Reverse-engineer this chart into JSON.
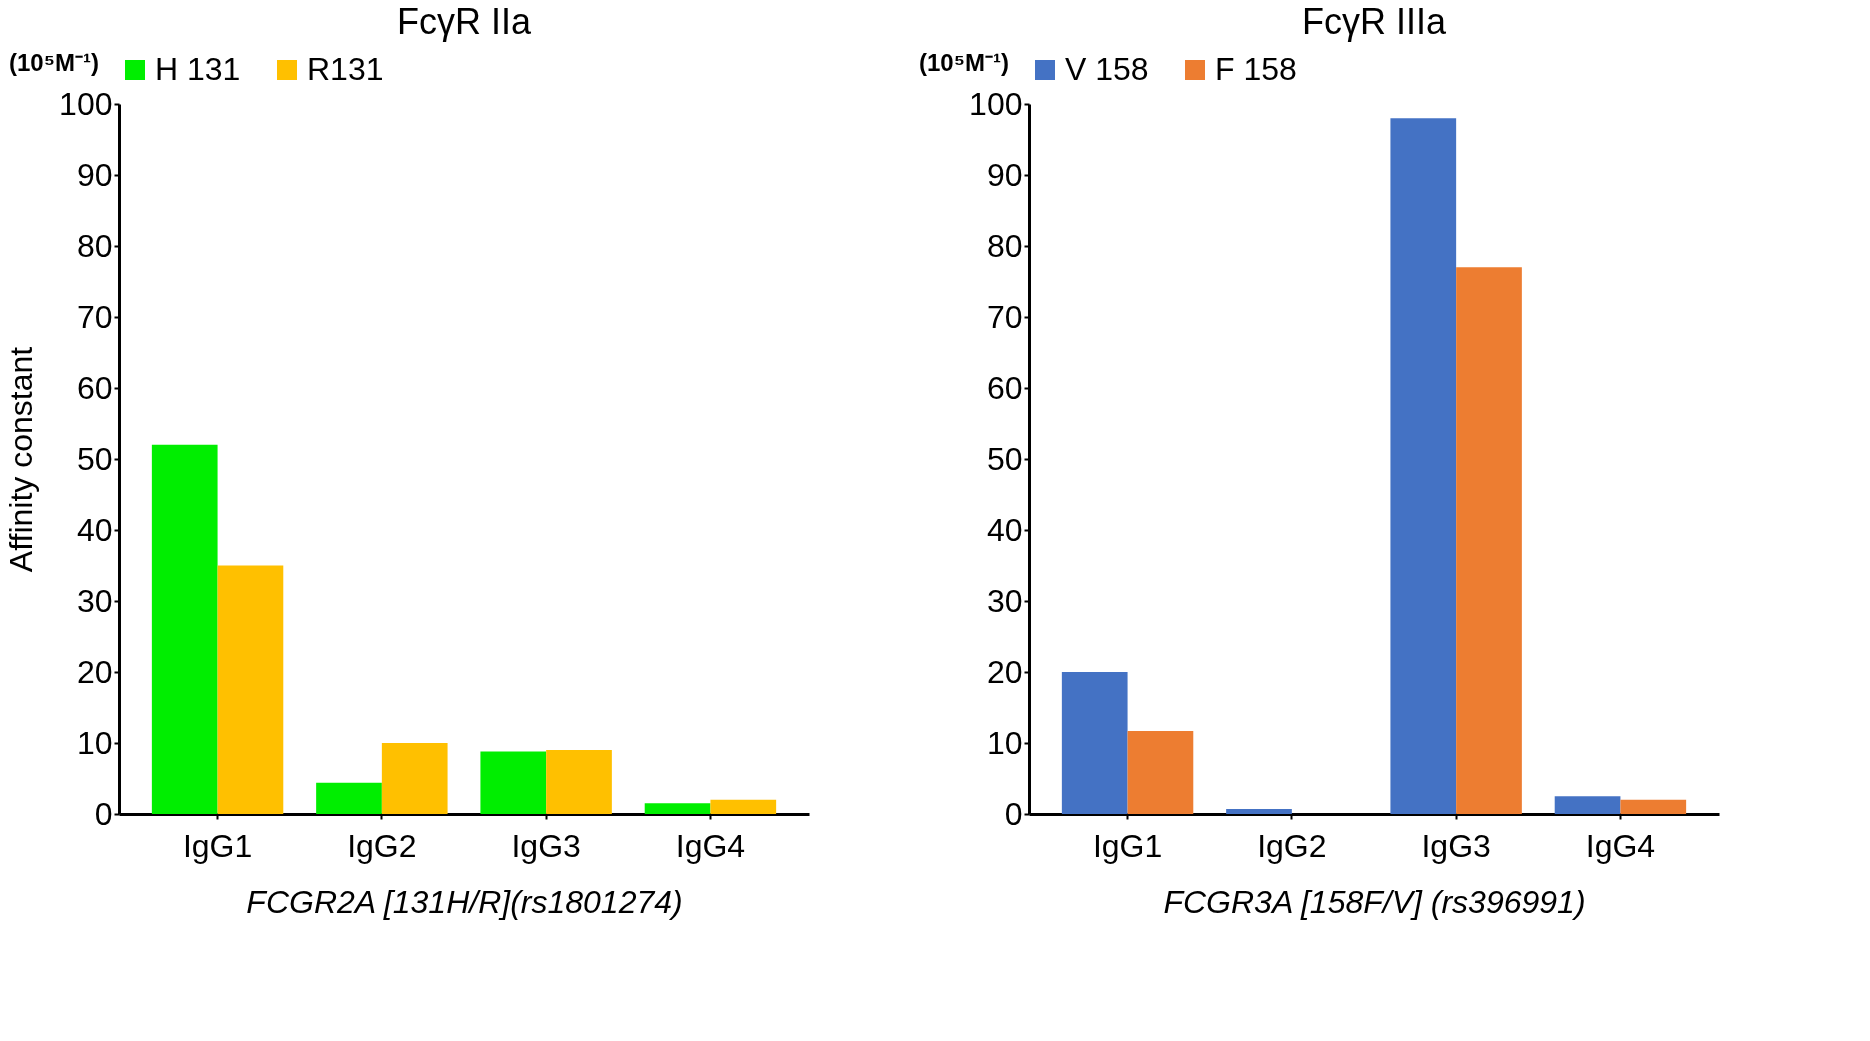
{
  "chart_data": [
    {
      "type": "bar",
      "title": "FcγR IIa",
      "xlabel": "FCGR2A [131H/R](rs1801274)",
      "ylabel": "Affinity constant",
      "annotations": [
        "(10⁵M⁻¹)"
      ],
      "categories": [
        "IgG1",
        "IgG2",
        "IgG3",
        "IgG4"
      ],
      "series": [
        {
          "name": "H 131",
          "color": "#00ee00",
          "values": [
            52,
            4.4,
            8.8,
            1.5
          ]
        },
        {
          "name": "R131",
          "color": "#ffc000",
          "values": [
            35,
            10,
            9,
            2
          ]
        }
      ],
      "ylim": [
        0,
        100
      ],
      "yticks": [
        0,
        10,
        20,
        30,
        40,
        50,
        60,
        70,
        80,
        90,
        100
      ],
      "legend": "top",
      "grid": false
    },
    {
      "type": "bar",
      "title": "FcγR IIIa",
      "xlabel": "FCGR3A [158F/V] (rs396991)",
      "annotations": [
        "(10⁵M⁻¹)"
      ],
      "categories": [
        "IgG1",
        "IgG2",
        "IgG3",
        "IgG4"
      ],
      "series": [
        {
          "name": "V 158",
          "color": "#4472c4",
          "values": [
            20,
            0.7,
            98,
            2.5
          ]
        },
        {
          "name": "F 158",
          "color": "#ed7d31",
          "values": [
            11.7,
            0,
            77,
            2
          ]
        }
      ],
      "ylim": [
        0,
        100
      ],
      "yticks": [
        0,
        10,
        20,
        30,
        40,
        50,
        60,
        70,
        80,
        90,
        100
      ],
      "legend": "top",
      "grid": false
    }
  ]
}
